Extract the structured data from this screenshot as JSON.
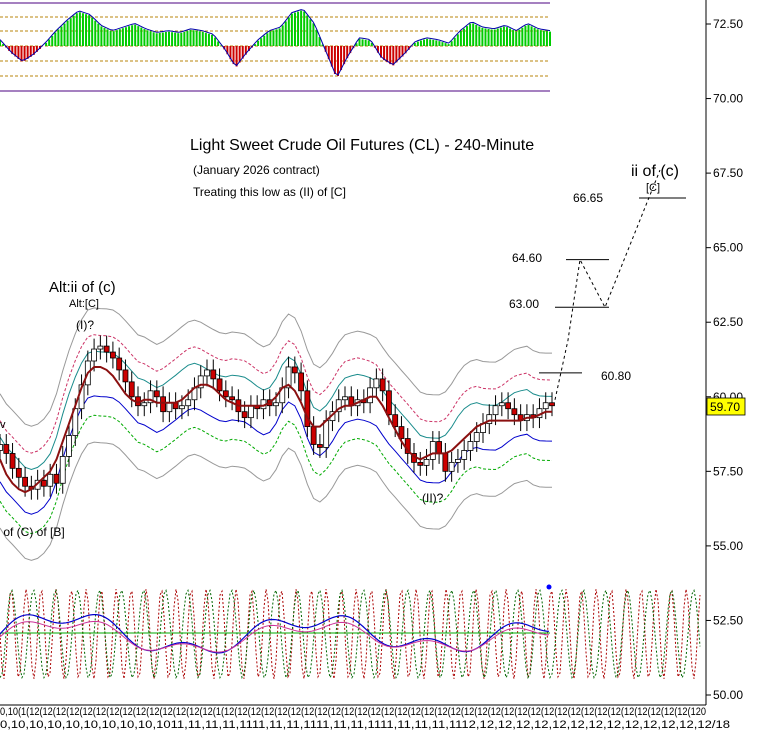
{
  "chart_data": {
    "type": "line",
    "title": "Light Sweet Crude Oil Futures (CL) - 240-Minute",
    "subtitle": "(January 2026 contract)",
    "note": "Treating this low as (II) of [C]",
    "ylim": [
      50.0,
      73.5
    ],
    "y_ticks": [
      "72.50",
      "70.00",
      "67.50",
      "65.00",
      "62.50",
      "60.00",
      "57.50",
      "55.00",
      "52.50",
      "50.00"
    ],
    "y_tick_values": [
      72.5,
      70.0,
      67.5,
      65.0,
      62.5,
      60.0,
      57.5,
      55.0,
      52.5,
      50.0
    ],
    "last_price": {
      "label": "59.70",
      "value": 59.7
    },
    "x_tick_text": "0,10(1(12(12(12(12(12(12(12(12(12(12(12(12(12(12(1(12(12(12(12(12(12(12(12(12(12(12(12(12(12(12(12(12(12(12(12(12(12(12(12(12(12(12(12(12(12(12(12(12(12(12(120",
    "x_date_text": "0,10,10,10,10,10,10,10,10,1011,11,11,11,1111,11,11,1111,11,11,1111,11,11,11,1112,12,12,12,12,12,12,12,12,12,12,12,12,12/18",
    "targets": [
      {
        "label": "66.65",
        "value": 66.65
      },
      {
        "label": "64.60",
        "value": 64.6
      },
      {
        "label": "63.00",
        "value": 63.0
      },
      {
        "label": "60.80",
        "value": 60.8
      }
    ],
    "wave_labels": {
      "ii_c": "ii of (c)",
      "c_bracket": "[C]",
      "alt_ii": "Alt:ii of (c)",
      "alt_c": "Alt:[C]",
      "i_label": "(I)?",
      "ii_label": "(II)?",
      "low_label": "v of (C) of [B]",
      "left_v": "v"
    },
    "projection": [
      {
        "x": 555,
        "y": 59.9
      },
      {
        "x": 568,
        "y": 61.9
      },
      {
        "x": 580,
        "y": 64.6
      },
      {
        "x": 605,
        "y": 63.0
      },
      {
        "x": 660,
        "y": 67.6
      }
    ],
    "series": [
      {
        "name": "",
        "values": [
          58.4,
          58.1,
          57.6,
          57.3,
          57.0,
          56.9,
          57.2,
          57.0,
          57.4,
          57.1,
          58.0,
          58.7,
          59.6,
          60.4,
          61.2,
          61.6,
          61.7,
          61.5,
          61.3,
          60.9,
          60.5,
          60.0,
          59.7,
          59.8,
          60.2,
          60.0,
          59.5,
          59.8,
          59.6,
          59.7,
          59.9,
          60.3,
          60.7,
          60.9,
          60.6,
          60.2,
          60.0,
          59.9,
          59.5,
          59.3,
          59.7,
          59.6,
          59.9,
          59.7,
          59.8,
          60.3,
          61.0,
          60.8,
          60.2,
          59.0,
          58.4,
          58.3,
          59.2,
          59.5,
          59.9,
          60.0,
          59.7,
          59.9,
          59.8,
          60.3,
          60.6,
          60.2,
          59.4,
          59.0,
          58.6,
          58.1,
          57.8,
          57.7,
          57.9,
          58.5,
          58.1,
          57.5,
          57.8,
          57.9,
          58.2,
          58.5,
          58.8,
          59.1,
          59.4,
          59.7,
          59.8,
          59.6,
          59.4,
          59.2,
          59.4,
          59.3,
          59.6,
          59.8,
          59.7
        ]
      },
      {
        "name": "",
        "values": [
          57.9,
          57.4,
          57.1,
          56.9,
          56.8,
          56.9,
          57.1,
          57.3,
          57.5,
          57.9,
          58.5,
          59.1,
          59.7,
          60.3,
          60.8,
          61.0,
          61.0,
          60.9,
          60.7,
          60.4,
          60.1,
          59.9,
          59.8,
          59.9,
          59.9,
          59.8,
          59.8,
          59.8,
          59.8,
          59.9,
          60.1,
          60.3,
          60.4,
          60.4,
          60.3,
          60.1,
          59.9,
          59.8,
          59.7,
          59.7,
          59.7,
          59.7,
          59.7,
          59.8,
          60.0,
          60.3,
          60.4,
          60.2,
          59.8,
          59.3,
          59.0,
          59.0,
          59.2,
          59.4,
          59.6,
          59.7,
          59.7,
          59.8,
          59.9,
          60.0,
          60.0,
          59.7,
          59.3,
          58.9,
          58.5,
          58.2,
          58.0,
          57.9,
          58.0,
          58.1,
          58.1,
          58.1,
          58.2,
          58.4,
          58.6,
          58.8,
          59.0,
          59.1,
          59.2,
          59.2,
          59.2,
          59.2,
          59.2,
          59.2,
          59.3,
          59.3,
          59.4,
          59.5,
          59.5
        ]
      }
    ],
    "oscillator_values": [
      0.3,
      -0.4,
      -0.9,
      -0.5,
      0.1,
      0.8,
      1.4,
      1.9,
      1.7,
      1.1,
      0.8,
      1.0,
      1.2,
      0.9,
      0.7,
      0.8,
      0.7,
      0.9,
      0.8,
      0.6,
      -0.2,
      -1.2,
      -0.4,
      0.3,
      0.8,
      1.0,
      1.8,
      2.0,
      1.2,
      -0.3,
      -1.8,
      -0.6,
      0.4,
      0.3,
      -0.7,
      -1.1,
      -0.5,
      0.2,
      0.4,
      0.3,
      0.1,
      0.8,
      1.3,
      1.0,
      0.9,
      1.1,
      0.8,
      1.2,
      0.9,
      0.8
    ]
  },
  "colors": {
    "bull": "#00cc00",
    "bear": "#cc0000",
    "ma": "#8b1010",
    "teal": "#1a8c8c",
    "blue": "#0000cc",
    "envelope": "#999999",
    "label_bg": "#ffff00"
  }
}
